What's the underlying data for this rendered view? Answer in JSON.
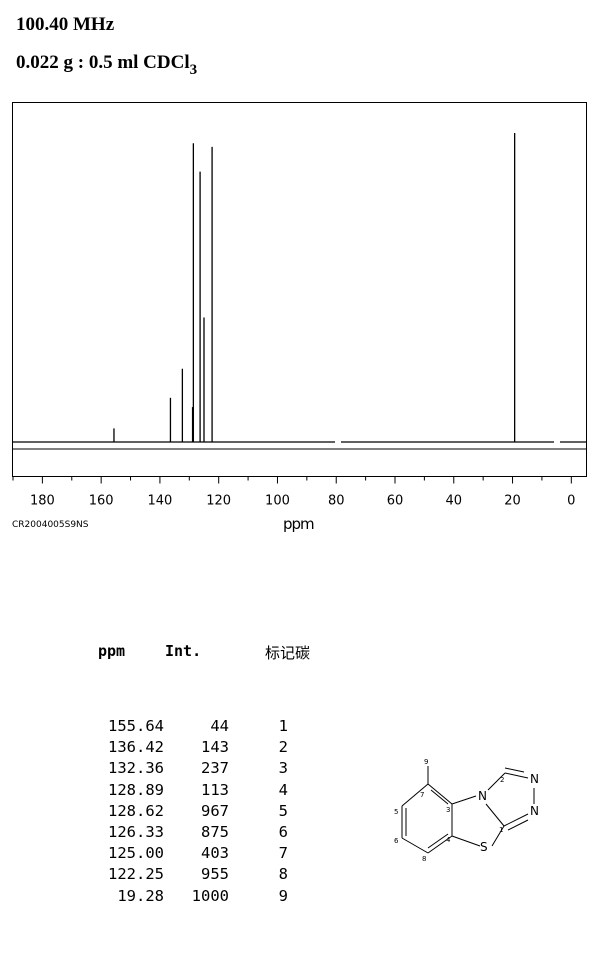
{
  "header": {
    "frequency": "100.40 MHz",
    "sample_main": "0.022 g : 0.5 ml CDCl",
    "sample_sub": "3"
  },
  "spectrum_code": "CR2004005S9NS",
  "chart_data": {
    "type": "bar",
    "xlabel": "ppm",
    "xlim": [
      190,
      -5
    ],
    "xticks": [
      180,
      160,
      140,
      120,
      100,
      80,
      60,
      40,
      20,
      0
    ],
    "ylim": [
      0,
      1000
    ],
    "peaks": [
      {
        "ppm": 155.64,
        "intensity": 44
      },
      {
        "ppm": 136.42,
        "intensity": 143
      },
      {
        "ppm": 132.36,
        "intensity": 237
      },
      {
        "ppm": 128.89,
        "intensity": 113
      },
      {
        "ppm": 128.62,
        "intensity": 967
      },
      {
        "ppm": 126.33,
        "intensity": 875
      },
      {
        "ppm": 125.0,
        "intensity": 403
      },
      {
        "ppm": 122.25,
        "intensity": 955
      },
      {
        "ppm": 19.28,
        "intensity": 1000
      }
    ]
  },
  "table": {
    "headers": {
      "ppm": "ppm",
      "int": "Int.",
      "label": "标记碳"
    },
    "rows": [
      {
        "ppm": "155.64",
        "int": "44",
        "label": "1"
      },
      {
        "ppm": "136.42",
        "int": "143",
        "label": "2"
      },
      {
        "ppm": "132.36",
        "int": "237",
        "label": "3"
      },
      {
        "ppm": "128.89",
        "int": "113",
        "label": "4"
      },
      {
        "ppm": "128.62",
        "int": "967",
        "label": "5"
      },
      {
        "ppm": "126.33",
        "int": "875",
        "label": "6"
      },
      {
        "ppm": "125.00",
        "int": "403",
        "label": "7"
      },
      {
        "ppm": "122.25",
        "int": "955",
        "label": "8"
      },
      {
        "ppm": "19.28",
        "int": "1000",
        "label": "9"
      }
    ]
  },
  "molecule": {
    "atoms": [
      "N",
      "N",
      "N",
      "S"
    ],
    "numbers": [
      "1",
      "2",
      "3",
      "4",
      "5",
      "6",
      "7",
      "8",
      "9"
    ]
  }
}
